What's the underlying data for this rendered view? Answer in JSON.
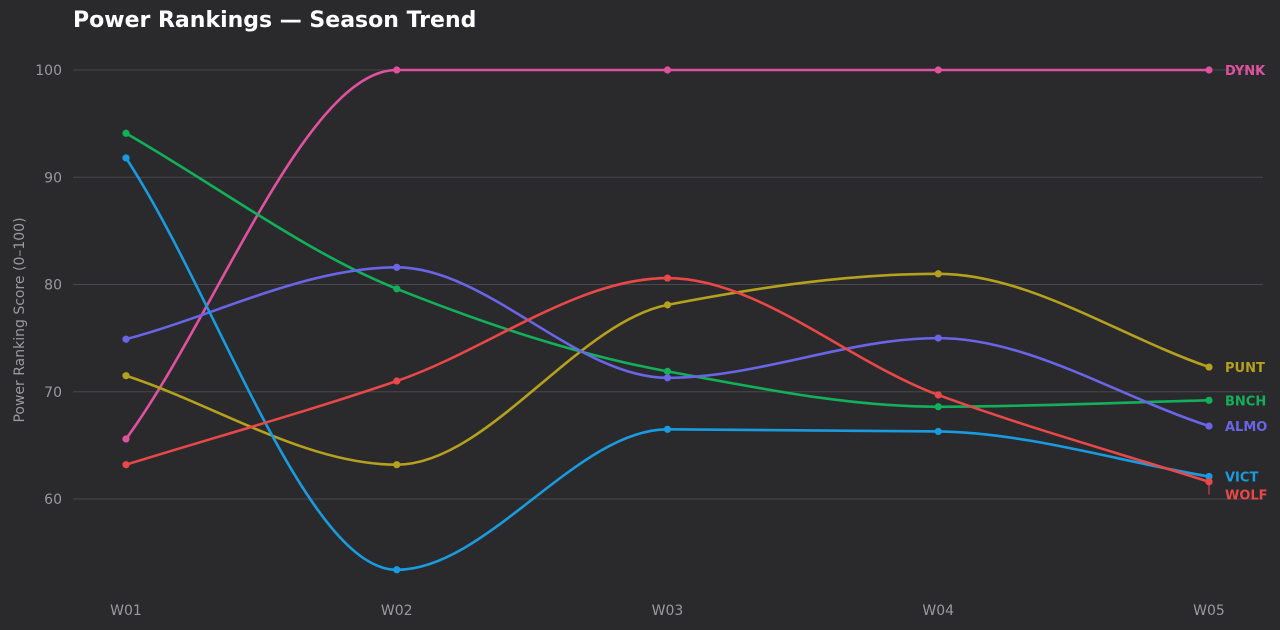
{
  "chart_data": {
    "type": "line",
    "title": "Power Rankings — Season Trend",
    "xlabel": "",
    "ylabel": "Power Ranking Score (0–100)",
    "categories": [
      "W01",
      "W02",
      "W03",
      "W04",
      "W05"
    ],
    "ylim": [
      50.5,
      103
    ],
    "yticks": [
      60,
      70,
      80,
      90,
      100
    ],
    "grid": true,
    "legend": "end-of-line labels",
    "series": [
      {
        "name": "DYNK",
        "color": "#e052a0",
        "values": [
          65.6,
          100,
          100,
          100,
          100
        ]
      },
      {
        "name": "PUNT",
        "color": "#b5a11e",
        "values": [
          71.5,
          63.2,
          78.1,
          81.0,
          72.3
        ]
      },
      {
        "name": "BNCH",
        "color": "#12b05a",
        "values": [
          94.1,
          79.6,
          71.9,
          68.6,
          69.2
        ]
      },
      {
        "name": "ALMO",
        "color": "#6a65e6",
        "values": [
          74.9,
          81.6,
          71.3,
          75.0,
          66.8
        ]
      },
      {
        "name": "VICT",
        "color": "#1a9be0",
        "values": [
          91.8,
          53.4,
          66.5,
          66.3,
          62.1
        ]
      },
      {
        "name": "WOLF",
        "color": "#e84848",
        "values": [
          63.2,
          71.0,
          80.6,
          69.7,
          61.6
        ]
      }
    ]
  }
}
